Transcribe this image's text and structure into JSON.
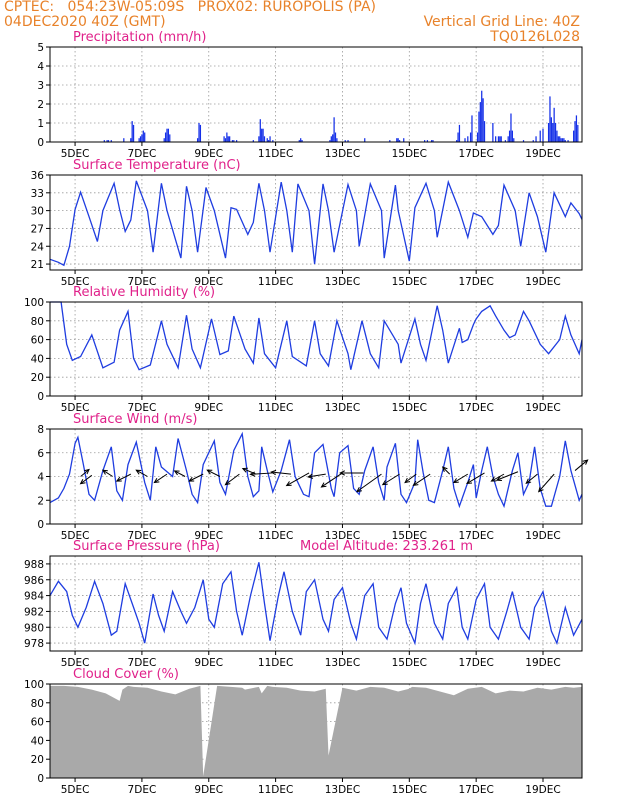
{
  "header": {
    "line1_left": "CPTEC:   054:23W-05:09S   PROX02: RUROPOLIS (PA)",
    "line2_left": "04DEC2020 40Z (GMT)",
    "line2_right": "Vertical Grid Line: 40Z",
    "line3_right": "TQ0126L028"
  },
  "colors": {
    "header": "#e8822a",
    "title": "#e0218a",
    "series": "#1f3de0",
    "bars": "#1530e8",
    "cloud": "#a9a9a9"
  },
  "chart_data": [
    {
      "id": "precip",
      "type": "bar",
      "title": "Precipitation (mm/h)",
      "ylim": [
        0,
        5
      ],
      "yticks": [
        0,
        1,
        2,
        3,
        4,
        5
      ],
      "x_hours": [
        39,
        41,
        42,
        44,
        53,
        58,
        59,
        60,
        64,
        65,
        66,
        67,
        68,
        82,
        83,
        84,
        85,
        86,
        106,
        107,
        108,
        125,
        126,
        127,
        128,
        129,
        131,
        132,
        134,
        146,
        150,
        151,
        152,
        153,
        154,
        156,
        157,
        158,
        160,
        179,
        180,
        181,
        201,
        202,
        203,
        204,
        205,
        206,
        212,
        214,
        226,
        244,
        249,
        250,
        251,
        254,
        269,
        271,
        274,
        275,
        292,
        293,
        294,
        298,
        300,
        302,
        303,
        307,
        308,
        309,
        310,
        311,
        312,
        318,
        320,
        322,
        323,
        324,
        327,
        329,
        330,
        331,
        332,
        333,
        340,
        347,
        349,
        352,
        354,
        358,
        359,
        360,
        361,
        362,
        363,
        364,
        365,
        366,
        367,
        368,
        369,
        370,
        372,
        376,
        377,
        378,
        379
      ],
      "values": [
        0.1,
        0.1,
        0.1,
        0.1,
        0.2,
        0.2,
        1.1,
        0.9,
        0.2,
        0.3,
        0.4,
        0.6,
        0.5,
        0.2,
        0.5,
        0.7,
        0.7,
        0.4,
        0.2,
        1.0,
        0.9,
        0.3,
        0.2,
        0.5,
        0.3,
        0.3,
        0.1,
        0.1,
        0.1,
        0.1,
        0.3,
        1.2,
        0.7,
        0.7,
        0.3,
        0.2,
        0.1,
        0.3,
        0.1,
        0.1,
        0.2,
        0.1,
        0.1,
        0.3,
        0.4,
        1.3,
        0.5,
        0.2,
        0.1,
        0.1,
        0.2,
        0.1,
        0.2,
        0.2,
        0.1,
        0.2,
        0.1,
        0.1,
        0.1,
        0.1,
        0.1,
        0.5,
        0.9,
        0.2,
        0.3,
        0.5,
        1.4,
        0.5,
        1.6,
        2.1,
        2.7,
        2.3,
        1.1,
        1.0,
        0.3,
        0.3,
        0.3,
        0.3,
        0.1,
        0.3,
        0.6,
        1.5,
        0.6,
        0.2,
        0.1,
        0.1,
        0.3,
        0.6,
        0.7,
        1.0,
        2.4,
        1.3,
        1.0,
        1.8,
        1.0,
        0.6,
        0.3,
        0.3,
        0.2,
        0.2,
        0.2,
        0.1,
        0.1,
        0.6,
        1.1,
        1.4,
        0.9
      ],
      "xtick_labels": [
        "5DEC",
        "7DEC",
        "9DEC",
        "11DEC",
        "13DEC",
        "15DEC",
        "17DEC",
        "19DEC"
      ]
    },
    {
      "id": "temp",
      "type": "line",
      "title": "Surface Temperature (nC)",
      "ylim": [
        20,
        36
      ],
      "yticks": [
        21,
        24,
        27,
        30,
        33,
        36
      ],
      "x_hours": [
        0,
        6,
        10,
        14,
        18,
        22,
        28,
        34,
        38,
        46,
        50,
        54,
        58,
        62,
        70,
        74,
        80,
        84,
        94,
        98,
        102,
        106,
        112,
        118,
        126,
        130,
        134,
        142,
        146,
        150,
        154,
        158,
        166,
        170,
        174,
        178,
        186,
        190,
        196,
        200,
        204,
        214,
        220,
        222,
        230,
        238,
        240,
        248,
        250,
        258,
        262,
        270,
        276,
        278,
        286,
        294,
        300,
        304,
        310,
        318,
        322,
        326,
        334,
        338,
        344,
        350,
        356,
        362,
        370,
        374,
        380,
        382
      ],
      "values": [
        21.8,
        21.3,
        20.8,
        24.0,
        30.2,
        33.1,
        29.0,
        24.8,
        30.0,
        34.6,
        30.2,
        26.5,
        28.4,
        35.0,
        30.0,
        23.0,
        34.6,
        30.0,
        22.0,
        34.1,
        30.0,
        23.0,
        33.9,
        30.0,
        22.0,
        30.5,
        30.2,
        26.0,
        28.0,
        34.6,
        30.0,
        23.0,
        34.8,
        30.0,
        23.0,
        34.5,
        30.0,
        21.0,
        34.5,
        30.0,
        23.0,
        34.4,
        30.0,
        24.0,
        34.5,
        30.0,
        22.0,
        34.3,
        30.0,
        21.5,
        30.5,
        34.6,
        30.0,
        25.5,
        34.8,
        30.0,
        25.5,
        29.6,
        29.0,
        26.0,
        27.5,
        34.3,
        30.0,
        24.0,
        33.0,
        29.0,
        23.0,
        33.0,
        29.0,
        31.3,
        29.5,
        28.5
      ],
      "xtick_labels": [
        "5DEC",
        "7DEC",
        "9DEC",
        "11DEC",
        "13DEC",
        "15DEC",
        "17DEC",
        "19DEC"
      ]
    },
    {
      "id": "rh",
      "type": "line",
      "title": "Relative Humidity (%)",
      "ylim": [
        0,
        100
      ],
      "yticks": [
        0,
        20,
        40,
        60,
        80,
        100
      ],
      "x_hours": [
        0,
        8,
        12,
        16,
        22,
        30,
        38,
        46,
        50,
        56,
        60,
        64,
        72,
        80,
        84,
        92,
        98,
        102,
        108,
        116,
        122,
        128,
        132,
        140,
        146,
        150,
        154,
        162,
        170,
        174,
        184,
        190,
        194,
        200,
        206,
        214,
        216,
        224,
        230,
        236,
        240,
        250,
        252,
        262,
        266,
        270,
        278,
        282,
        286,
        294,
        296,
        300,
        304,
        306,
        310,
        316,
        320,
        326,
        330,
        334,
        340,
        344,
        352,
        358,
        366,
        370,
        374,
        380,
        382
      ],
      "values": [
        100,
        100,
        55,
        38,
        42,
        65,
        30,
        36,
        70,
        90,
        40,
        28,
        33,
        80,
        55,
        30,
        86,
        50,
        30,
        82,
        44,
        48,
        85,
        50,
        35,
        83,
        45,
        30,
        80,
        42,
        32,
        80,
        45,
        32,
        80,
        45,
        28,
        80,
        45,
        30,
        80,
        55,
        35,
        82,
        55,
        38,
        96,
        70,
        35,
        72,
        57,
        60,
        76,
        82,
        90,
        96,
        85,
        70,
        62,
        65,
        90,
        80,
        55,
        45,
        60,
        85,
        65,
        45,
        60
      ],
      "xtick_labels": [
        "5DEC",
        "7DEC",
        "9DEC",
        "11DEC",
        "13DEC",
        "15DEC",
        "17DEC",
        "19DEC"
      ]
    },
    {
      "id": "wind",
      "type": "line",
      "title": "Surface Wind (m/s)",
      "ylim": [
        0,
        8
      ],
      "yticks": [
        0,
        2,
        4,
        6,
        8
      ],
      "x_hours": [
        0,
        6,
        10,
        14,
        18,
        20,
        24,
        28,
        32,
        38,
        44,
        48,
        52,
        56,
        62,
        68,
        72,
        76,
        80,
        88,
        92,
        98,
        102,
        106,
        110,
        118,
        122,
        126,
        132,
        138,
        142,
        146,
        150,
        152,
        156,
        160,
        166,
        172,
        176,
        182,
        186,
        190,
        196,
        202,
        204,
        208,
        214,
        218,
        222,
        226,
        232,
        236,
        240,
        242,
        248,
        252,
        256,
        262,
        264,
        268,
        272,
        276,
        282,
        286,
        290,
        294,
        300,
        304,
        306,
        310,
        314,
        318,
        322,
        326,
        332,
        336,
        340,
        344,
        348,
        352,
        356,
        360,
        366,
        370,
        374,
        380,
        382
      ],
      "values": [
        1.8,
        2.2,
        3.0,
        4.2,
        6.8,
        7.3,
        5.0,
        2.5,
        2.0,
        4.5,
        6.5,
        2.8,
        2.0,
        5.0,
        6.9,
        3.5,
        2.0,
        6.5,
        4.8,
        4.0,
        7.2,
        4.5,
        2.5,
        1.8,
        5.0,
        7.0,
        3.5,
        2.5,
        6.2,
        7.6,
        4.0,
        2.3,
        2.8,
        6.5,
        4.5,
        2.7,
        4.5,
        7.1,
        4.0,
        2.5,
        2.3,
        6.0,
        6.7,
        3.0,
        2.3,
        6.0,
        6.6,
        3.0,
        2.5,
        4.5,
        6.5,
        3.5,
        2.0,
        4.8,
        6.8,
        2.5,
        1.8,
        3.5,
        7.1,
        4.3,
        2.0,
        1.8,
        4.5,
        6.5,
        3.0,
        1.5,
        3.5,
        5.0,
        2.2,
        4.5,
        6.5,
        4.0,
        2.5,
        1.5,
        4.5,
        6.0,
        2.5,
        3.5,
        6.5,
        3.0,
        1.5,
        1.5,
        4.0,
        7.0,
        4.5,
        2.0,
        2.5
      ],
      "arrows": [
        {
          "x": 22,
          "y": 4.0,
          "dx": 1.2,
          "dy": 1.0
        },
        {
          "x": 30,
          "y": 4.1,
          "dx": -1.6,
          "dy": -1.2
        },
        {
          "x": 45,
          "y": 4.0,
          "dx": -1.4,
          "dy": 0.9
        },
        {
          "x": 58,
          "y": 4.2,
          "dx": -2.0,
          "dy": -1.0
        },
        {
          "x": 70,
          "y": 4.0,
          "dx": -1.6,
          "dy": 0.9
        },
        {
          "x": 84,
          "y": 4.2,
          "dx": -1.8,
          "dy": -1.2
        },
        {
          "x": 97,
          "y": 4.0,
          "dx": -1.5,
          "dy": 0.8
        },
        {
          "x": 110,
          "y": 4.2,
          "dx": -2.0,
          "dy": -1.0
        },
        {
          "x": 122,
          "y": 4.0,
          "dx": -1.8,
          "dy": 0.9
        },
        {
          "x": 136,
          "y": 4.2,
          "dx": -2.0,
          "dy": -1.5
        },
        {
          "x": 148,
          "y": 4.2,
          "dx": -1.9,
          "dy": 0.8
        },
        {
          "x": 160,
          "y": 4.3,
          "dx": -3.2,
          "dy": -0.2
        },
        {
          "x": 173,
          "y": 4.2,
          "dx": -2.8,
          "dy": 0.3
        },
        {
          "x": 186,
          "y": 4.3,
          "dx": -3.2,
          "dy": -1.8
        },
        {
          "x": 198,
          "y": 4.2,
          "dx": -2.5,
          "dy": -0.4
        },
        {
          "x": 210,
          "y": 4.3,
          "dx": -3.0,
          "dy": -2.0
        },
        {
          "x": 225,
          "y": 4.3,
          "dx": -3.3,
          "dy": 0.0
        },
        {
          "x": 238,
          "y": 4.2,
          "dx": -3.5,
          "dy": -2.5
        },
        {
          "x": 251,
          "y": 4.2,
          "dx": -2.4,
          "dy": -1.5
        },
        {
          "x": 263,
          "y": 4.2,
          "dx": -1.6,
          "dy": -1.2
        },
        {
          "x": 273,
          "y": 4.2,
          "dx": -2.4,
          "dy": -1.6
        },
        {
          "x": 287,
          "y": 4.2,
          "dx": -1.0,
          "dy": 1.0
        },
        {
          "x": 300,
          "y": 4.2,
          "dx": -2.0,
          "dy": -1.2
        },
        {
          "x": 312,
          "y": 4.3,
          "dx": -2.5,
          "dy": -1.5
        },
        {
          "x": 326,
          "y": 4.2,
          "dx": -1.8,
          "dy": -1.0
        },
        {
          "x": 336,
          "y": 4.4,
          "dx": -3.0,
          "dy": -1.2
        },
        {
          "x": 350,
          "y": 4.2,
          "dx": -1.6,
          "dy": -1.3
        },
        {
          "x": 362,
          "y": 4.2,
          "dx": -2.2,
          "dy": -2.5
        },
        {
          "x": 377,
          "y": 4.5,
          "dx": 1.8,
          "dy": 1.5
        }
      ],
      "xtick_labels": [
        "5DEC",
        "7DEC",
        "9DEC",
        "11DEC",
        "13DEC",
        "15DEC",
        "17DEC",
        "19DEC"
      ]
    },
    {
      "id": "pres",
      "type": "line",
      "title": "Surface Pressure (hPa)",
      "subtitle": "Model Altitude: 233.261 m",
      "ylim": [
        977,
        989
      ],
      "yticks": [
        978,
        980,
        982,
        984,
        986,
        988
      ],
      "x_hours": [
        0,
        6,
        12,
        16,
        20,
        26,
        32,
        38,
        44,
        48,
        54,
        60,
        64,
        68,
        74,
        78,
        82,
        88,
        94,
        98,
        104,
        110,
        114,
        118,
        124,
        130,
        134,
        138,
        144,
        150,
        154,
        158,
        164,
        168,
        174,
        180,
        184,
        190,
        196,
        200,
        204,
        210,
        216,
        220,
        226,
        232,
        236,
        242,
        248,
        252,
        256,
        262,
        266,
        270,
        276,
        282,
        286,
        292,
        296,
        300,
        306,
        312,
        316,
        322,
        328,
        332,
        338,
        344,
        348,
        354,
        360,
        364,
        370,
        376,
        382
      ],
      "values": [
        984.0,
        985.8,
        984.5,
        981.5,
        980.0,
        982.5,
        985.8,
        983.0,
        979.0,
        979.5,
        985.5,
        982.5,
        980.5,
        978.0,
        984.2,
        981.5,
        979.5,
        984.5,
        982.0,
        980.5,
        982.5,
        986.0,
        981.0,
        980.0,
        985.5,
        987.0,
        982.0,
        979.0,
        984.0,
        988.2,
        983.0,
        978.3,
        984.0,
        987.0,
        982.0,
        979.0,
        984.5,
        986.0,
        981.0,
        979.5,
        983.5,
        985.0,
        980.5,
        978.5,
        984.0,
        985.5,
        980.0,
        978.5,
        983.0,
        985.0,
        980.5,
        978.0,
        983.0,
        985.5,
        980.5,
        978.5,
        983.0,
        985.0,
        980.0,
        978.5,
        983.5,
        985.5,
        980.0,
        978.5,
        982.0,
        984.5,
        980.0,
        978.5,
        982.5,
        984.5,
        979.5,
        978.0,
        982.5,
        979.0,
        981.0
      ],
      "xtick_labels": [
        "5DEC",
        "7DEC",
        "9DEC",
        "11DEC",
        "13DEC",
        "15DEC",
        "17DEC",
        "19DEC"
      ]
    },
    {
      "id": "cloud",
      "type": "area",
      "title": "Cloud Cover (%)",
      "ylim": [
        0,
        100
      ],
      "yticks": [
        0,
        20,
        40,
        60,
        80,
        100
      ],
      "x_hours": [
        0,
        10,
        20,
        30,
        40,
        50,
        52,
        56,
        60,
        70,
        80,
        90,
        100,
        108,
        110,
        120,
        130,
        138,
        140,
        150,
        152,
        156,
        160,
        170,
        180,
        190,
        198,
        200,
        210,
        220,
        230,
        240,
        250,
        258,
        260,
        270,
        280,
        290,
        300,
        310,
        320,
        330,
        340,
        350,
        360,
        370,
        376,
        382
      ],
      "values": [
        98,
        98,
        97,
        94,
        90,
        82,
        94,
        98,
        97,
        96,
        92,
        89,
        95,
        98,
        2,
        98,
        97,
        96,
        94,
        97,
        90,
        98,
        97,
        96,
        93,
        92,
        95,
        24,
        96,
        93,
        97,
        96,
        92,
        95,
        97,
        96,
        92,
        88,
        95,
        97,
        90,
        93,
        92,
        96,
        94,
        97,
        96,
        97
      ],
      "xtick_labels": [
        "5DEC",
        "7DEC",
        "9DEC",
        "11DEC",
        "13DEC",
        "15DEC",
        "17DEC",
        "19DEC"
      ]
    }
  ]
}
